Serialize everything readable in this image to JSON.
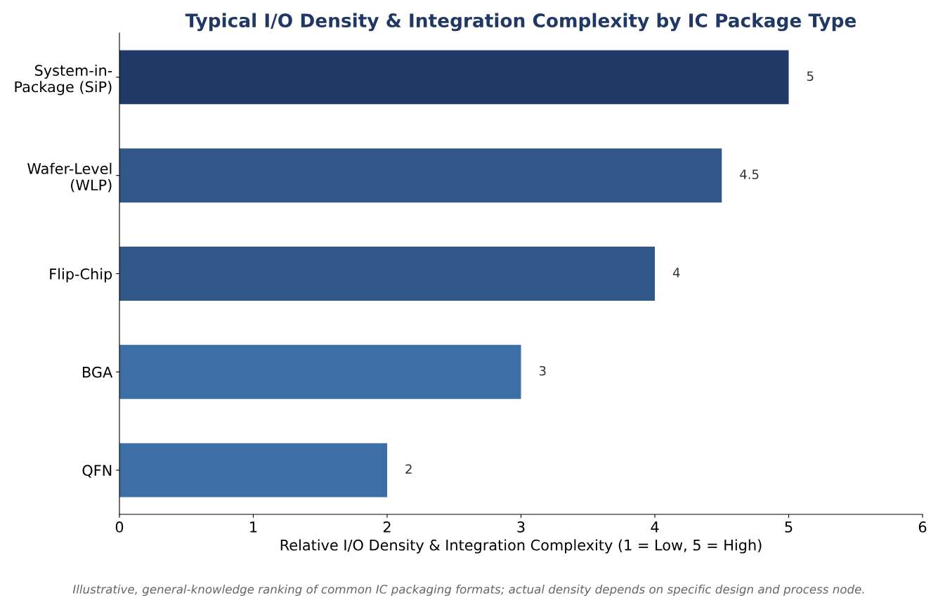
{
  "chart_data": {
    "type": "bar",
    "orientation": "horizontal",
    "title": "Typical I/O Density & Integration Complexity by IC Package Type",
    "xlabel": "Relative I/O Density & Integration Complexity (1 = Low, 5 = High)",
    "categories": [
      "System-in-\nPackage (SiP)",
      "Wafer-Level\n(WLP)",
      "Flip-Chip",
      "BGA",
      "QFN"
    ],
    "values": [
      5,
      4.5,
      4,
      3,
      2
    ],
    "colors": [
      "#213a65",
      "#315788",
      "#315788",
      "#3b6fa6",
      "#3b6fa6"
    ],
    "xlim": [
      0,
      6
    ],
    "xticks": [
      0,
      1,
      2,
      3,
      4,
      5,
      6
    ],
    "grid": false,
    "data_labels": true,
    "annotations": [
      "Illustrative, general-knowledge ranking of common IC packaging formats; actual density depends on specific design and process node."
    ]
  }
}
